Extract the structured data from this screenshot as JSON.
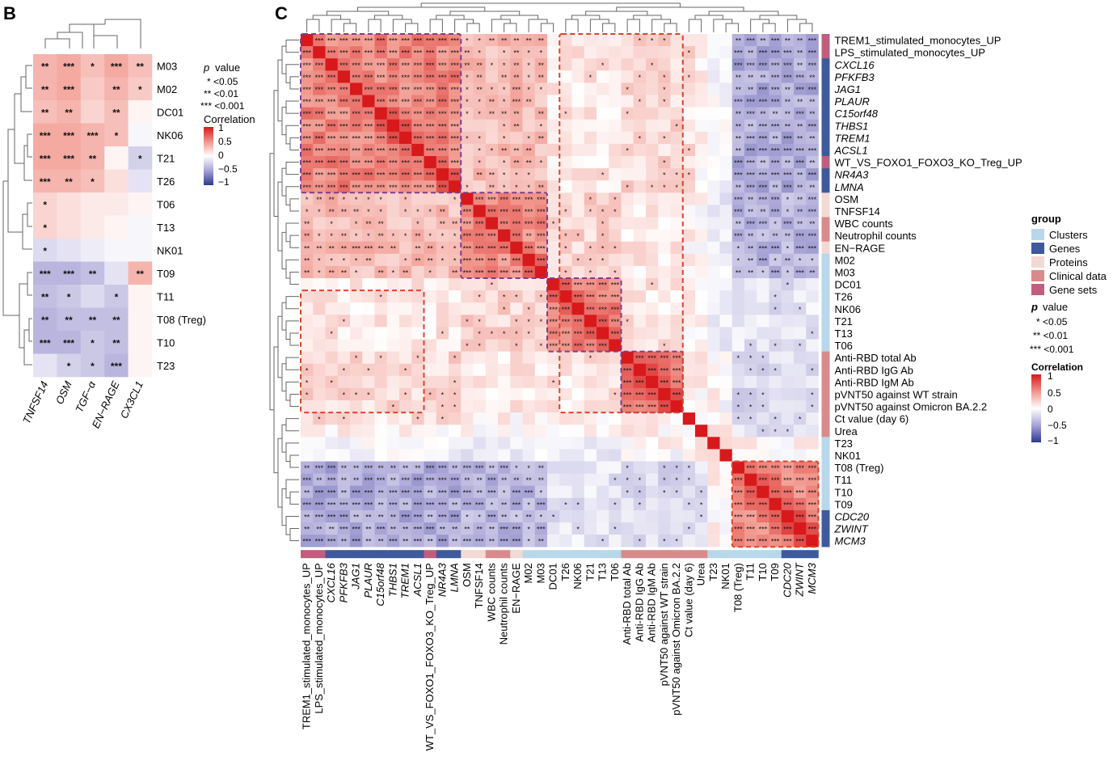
{
  "panel_b": {
    "letter": "B",
    "columns": [
      "TNFSF14",
      "OSM",
      "TGF−α",
      "EN−RAGE",
      "CX3CL1"
    ],
    "rows": [
      "M03",
      "M02",
      "DC01",
      "NK06",
      "T21",
      "T26",
      "T06",
      "T13",
      "NK01",
      "T09",
      "T11",
      "T08 (Treg)",
      "T10",
      "T23"
    ],
    "legend": {
      "p_title": "p",
      "p_title_suffix": "value",
      "p_items": [
        "* <0.05",
        "** <0.01",
        "*** <0.001"
      ],
      "corr_title": "Correlation",
      "corr_ticks": [
        "1",
        "0.5",
        "0",
        "−0.5",
        "−1"
      ]
    }
  },
  "panel_c": {
    "letter": "C",
    "legend": {
      "group_title": "group",
      "groups": [
        "Clusters",
        "Genes",
        "Proteins",
        "Clinical data",
        "Gene sets"
      ],
      "group_colors": [
        "#b9d7ea",
        "#3e5a9c",
        "#f3d9d3",
        "#d98a8c",
        "#c05e7e"
      ],
      "p_title": "p",
      "p_title_suffix": "value",
      "p_items": [
        "* <0.05",
        "** <0.01",
        "*** <0.001"
      ],
      "corr_title": "Correlation",
      "corr_ticks": [
        "1",
        "0.5",
        "0",
        "−0.5",
        "−1"
      ]
    }
  },
  "chart_data": [
    {
      "type": "heatmap",
      "title": "B",
      "x_labels": [
        "TNFSF14",
        "OSM",
        "TGF−α",
        "EN−RAGE",
        "CX3CL1"
      ],
      "y_labels": [
        "M03",
        "M02",
        "DC01",
        "NK06",
        "T21",
        "T26",
        "T06",
        "T13",
        "NK01",
        "T09",
        "T11",
        "T08 (Treg)",
        "T10",
        "T23"
      ],
      "values": [
        [
          0.35,
          0.4,
          0.3,
          0.4,
          0.3
        ],
        [
          0.35,
          0.4,
          0.25,
          0.35,
          0.25
        ],
        [
          0.3,
          0.35,
          0.2,
          0.3,
          0.05
        ],
        [
          0.4,
          0.4,
          0.35,
          0.3,
          -0.05
        ],
        [
          0.4,
          0.4,
          0.35,
          0.05,
          -0.25
        ],
        [
          0.35,
          0.35,
          0.3,
          0.15,
          -0.15
        ],
        [
          0.2,
          0.15,
          0.1,
          0.1,
          0.05
        ],
        [
          0.2,
          0.15,
          0.1,
          0.05,
          -0.05
        ],
        [
          -0.2,
          -0.15,
          -0.1,
          -0.05,
          -0.05
        ],
        [
          -0.4,
          -0.4,
          -0.35,
          -0.15,
          0.35
        ],
        [
          -0.35,
          -0.3,
          -0.2,
          -0.3,
          0.05
        ],
        [
          -0.4,
          -0.35,
          -0.35,
          -0.35,
          0.05
        ],
        [
          -0.4,
          -0.4,
          -0.3,
          -0.35,
          0.05
        ],
        [
          -0.15,
          -0.25,
          -0.3,
          -0.4,
          0.05
        ]
      ],
      "stars": [
        [
          "**",
          "***",
          "*",
          "***",
          "**"
        ],
        [
          "**",
          "***",
          "",
          "**",
          "*"
        ],
        [
          "**",
          "**",
          "",
          "**",
          ""
        ],
        [
          "***",
          "***",
          "***",
          "*",
          ""
        ],
        [
          "***",
          "***",
          "**",
          "",
          "*"
        ],
        [
          "***",
          "**",
          "*",
          "",
          ""
        ],
        [
          "*",
          "",
          "",
          "",
          ""
        ],
        [
          "*",
          "",
          "",
          "",
          ""
        ],
        [
          "*",
          "",
          "",
          "",
          ""
        ],
        [
          "***",
          "***",
          "**",
          "",
          "**"
        ],
        [
          "**",
          "*",
          "",
          "*",
          ""
        ],
        [
          "**",
          "**",
          "**",
          "**",
          ""
        ],
        [
          "***",
          "***",
          "*",
          "**",
          ""
        ],
        [
          "",
          "*",
          "*",
          "***",
          ""
        ]
      ],
      "color_range": [
        -1,
        1
      ]
    },
    {
      "type": "heatmap",
      "title": "C",
      "labels": [
        "TREM1_stimulated_monocytes_UP",
        "LPS_stimulated_monocytes_UP",
        "CXCL16",
        "PFKFB3",
        "JAG1",
        "PLAUR",
        "C15orf48",
        "THBS1",
        "TREM1",
        "ACSL1",
        "WT_VS_FOXO1_FOXO3_KO_Treg_UP",
        "NR4A3",
        "LMNA",
        "OSM",
        "TNFSF14",
        "WBC counts",
        "Neutrophil counts",
        "EN−RAGE",
        "M02",
        "M03",
        "DC01",
        "T26",
        "NK06",
        "T21",
        "T13",
        "T06",
        "Anti-RBD total Ab",
        "Anti-RBD IgG Ab",
        "Anti-RBD IgM Ab",
        "pVNT50 against WT strain",
        "pVNT50 against Omicron BA.2.2",
        "Ct value (day 6)",
        "Urea",
        "T23",
        "NK01",
        "T08 (Treg)",
        "T11",
        "T10",
        "T09",
        "CDC20",
        "ZWINT",
        "MCM3"
      ],
      "groups": [
        "Gene sets",
        "Gene sets",
        "Genes",
        "Genes",
        "Genes",
        "Genes",
        "Genes",
        "Genes",
        "Genes",
        "Genes",
        "Gene sets",
        "Genes",
        "Genes",
        "Proteins",
        "Proteins",
        "Clinical data",
        "Clinical data",
        "Proteins",
        "Clusters",
        "Clusters",
        "Clusters",
        "Clusters",
        "Clusters",
        "Clusters",
        "Clusters",
        "Clusters",
        "Clinical data",
        "Clinical data",
        "Clinical data",
        "Clinical data",
        "Clinical data",
        "Clinical data",
        "Clinical data",
        "Clusters",
        "Clusters",
        "Clusters",
        "Clusters",
        "Clusters",
        "Clusters",
        "Genes",
        "Genes",
        "Genes"
      ],
      "block_correlations": {
        "module_order": [
          "genes_block",
          "proteins_block",
          "t_block",
          "ab_block",
          "ct",
          "urea",
          "t23",
          "nk01",
          "neg_block"
        ],
        "module_sizes": [
          13,
          7,
          6,
          5,
          1,
          1,
          1,
          1,
          7
        ],
        "matrix": [
          [
            0.55,
            0.3,
            0.12,
            0.18,
            0.15,
            0.05,
            -0.05,
            -0.05,
            -0.45
          ],
          [
            0.3,
            0.5,
            0.2,
            0.1,
            0.05,
            0.02,
            -0.1,
            -0.1,
            -0.4
          ],
          [
            0.12,
            0.2,
            0.55,
            0.12,
            0.05,
            0.03,
            -0.05,
            -0.15,
            -0.15
          ],
          [
            0.18,
            0.1,
            0.12,
            0.65,
            0.05,
            0.05,
            0.03,
            -0.02,
            -0.2
          ],
          [
            0.15,
            0.05,
            0.05,
            0.05,
            1.0,
            -0.1,
            0.05,
            0.05,
            -0.2
          ],
          [
            0.05,
            0.02,
            0.03,
            0.05,
            -0.1,
            1.0,
            0.1,
            0.05,
            -0.15
          ],
          [
            -0.05,
            -0.1,
            -0.05,
            0.03,
            0.05,
            0.1,
            1.0,
            0.1,
            0.05
          ],
          [
            -0.05,
            -0.1,
            -0.15,
            -0.02,
            0.05,
            0.05,
            0.1,
            1.0,
            0.05
          ],
          [
            -0.45,
            -0.4,
            -0.15,
            -0.2,
            -0.2,
            -0.15,
            0.05,
            0.05,
            0.55
          ]
        ]
      },
      "color_range": [
        -1,
        1
      ]
    }
  ]
}
